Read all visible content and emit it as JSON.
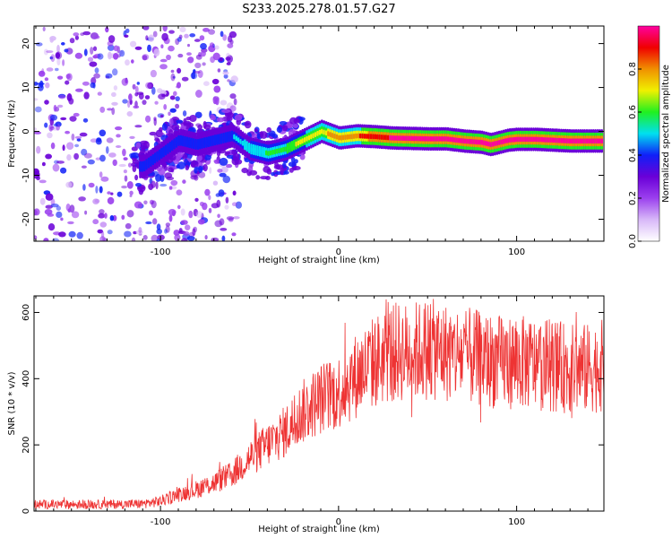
{
  "title": "S233.2025.278.01.57.G27",
  "chart_data": [
    {
      "type": "heatmap",
      "name": "spectrogram",
      "xlabel": "Height of straight line (km)",
      "ylabel": "Frequency (Hz)",
      "xlim": [
        -171,
        149
      ],
      "ylim": [
        -25,
        24
      ],
      "xticks": [
        -100,
        0,
        100
      ],
      "xtick_labels": [
        "-100",
        "0",
        "100"
      ],
      "yticks": [
        -20,
        -10,
        0,
        10,
        20
      ],
      "ytick_labels": [
        "-20",
        "-10",
        "0",
        "10",
        "20"
      ],
      "colorbar": {
        "label": "Normalized spectral amplitude",
        "range": [
          0.0,
          1.0
        ],
        "ticks": [
          0.0,
          0.2,
          0.4,
          0.6,
          0.8
        ],
        "tick_labels": [
          "0.0",
          "0.2",
          "0.4",
          "0.6",
          "0.8"
        ],
        "colors": [
          "#ffffff",
          "#d8b8f8",
          "#9b40ee",
          "#6a00d8",
          "#1020f8",
          "#00e0f0",
          "#20f020",
          "#f0f000",
          "#f09000",
          "#f00000",
          "#ff00a0"
        ]
      },
      "ridge": {
        "x": [
          -110,
          -100,
          -90,
          -80,
          -70,
          -60,
          -50,
          -40,
          -30,
          -20,
          -15,
          -10,
          0,
          10,
          20,
          30,
          40,
          50,
          60,
          70,
          80,
          85,
          90,
          95,
          100,
          110,
          120,
          130,
          140,
          148
        ],
        "y": [
          -8,
          -5,
          -2,
          -3,
          -2,
          -1,
          -4,
          -5,
          -4,
          -2,
          -1,
          0,
          -1.5,
          -1,
          -1.2,
          -1.5,
          -1.6,
          -1.7,
          -1.7,
          -2.2,
          -2.5,
          -3,
          -2.5,
          -2,
          -1.8,
          -1.8,
          -2,
          -2.2,
          -2.2,
          -2.2
        ]
      }
    },
    {
      "type": "line",
      "name": "snr",
      "xlabel": "Height of straight line (km)",
      "ylabel": "SNR (10 * v/v)",
      "xlim": [
        -171,
        149
      ],
      "ylim": [
        0,
        650
      ],
      "xticks": [
        -100,
        0,
        100
      ],
      "xtick_labels": [
        "-100",
        "0",
        "100"
      ],
      "yticks": [
        0,
        200,
        400,
        600
      ],
      "ytick_labels": [
        "0",
        "200",
        "400",
        "600"
      ],
      "color": "#ee3333",
      "series": [
        {
          "name": "SNR",
          "x": [
            -171,
            -150,
            -130,
            -110,
            -100,
            -90,
            -80,
            -70,
            -60,
            -50,
            -40,
            -30,
            -20,
            -10,
            0,
            10,
            20,
            30,
            40,
            50,
            60,
            70,
            80,
            90,
            100,
            110,
            120,
            130,
            140,
            149
          ],
          "y": [
            20,
            20,
            20,
            22,
            30,
            50,
            65,
            85,
            110,
            160,
            200,
            240,
            300,
            340,
            360,
            410,
            450,
            480,
            480,
            490,
            480,
            470,
            460,
            450,
            450,
            445,
            440,
            430,
            430,
            440
          ]
        }
      ]
    }
  ]
}
